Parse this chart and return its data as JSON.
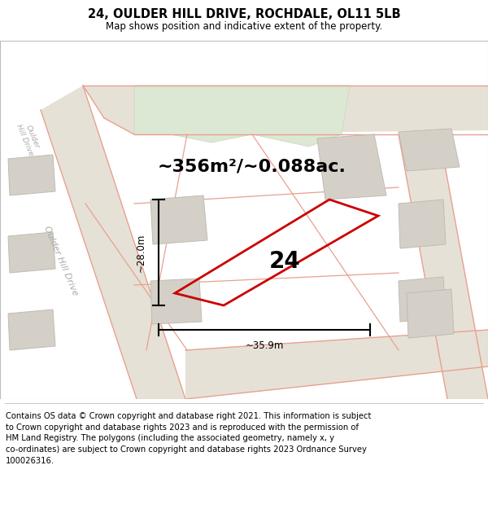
{
  "title": "24, OULDER HILL DRIVE, ROCHDALE, OL11 5LB",
  "subtitle": "Map shows position and indicative extent of the property.",
  "footer_line1": "Contains OS data © Crown copyright and database right 2021. This information is subject to Crown copyright and database rights 2023 and is reproduced with the permission of",
  "footer_line2": "HM Land Registry. The polygons (including the associated geometry, namely x, y co-ordinates) are subject to Crown copyright and database rights 2023 Ordnance Survey 100026316.",
  "area_text": "~356m²/~0.088ac.",
  "width_label": "~35.9m",
  "height_label": "~28.0m",
  "plot_number": "24",
  "map_bg": "#f5f3f0",
  "road_fill": "#e6e1d6",
  "road_line": "#e8a090",
  "green_fill": "#dce8d4",
  "green_edge": "#c4d8b8",
  "building_fill": "#d4d0c8",
  "building_edge": "#c0bcb4",
  "plot_color": "#cc0000",
  "plot_lw": 2.0,
  "title_fontsize": 10.5,
  "subtitle_fontsize": 8.5,
  "footer_fontsize": 7.2,
  "area_fontsize": 16,
  "dim_fontsize": 8.5,
  "plot_label_fontsize": 20,
  "road_label_fontsize": 8,
  "road_label_color": "#aaaaaa"
}
